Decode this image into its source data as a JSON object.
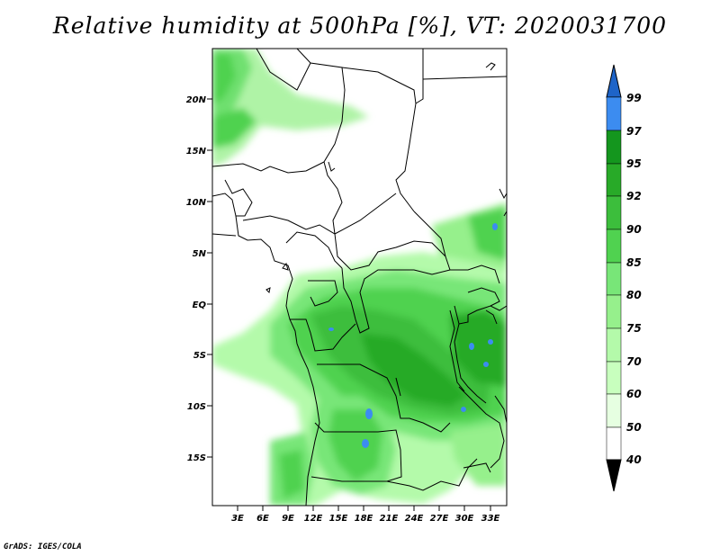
{
  "title": "Relative humidity at 500hPa [%], VT: 2020031700",
  "credit": "GrADS: IGES/COLA",
  "map": {
    "lat_labels": [
      "20N",
      "15N",
      "10N",
      "5N",
      "EQ",
      "5S",
      "10S",
      "15S"
    ],
    "lon_labels": [
      "3E",
      "6E",
      "9E",
      "12E",
      "15E",
      "18E",
      "21E",
      "24E",
      "27E",
      "30E",
      "33E"
    ]
  },
  "colorbar": {
    "levels": [
      "99",
      "97",
      "95",
      "92",
      "90",
      "85",
      "80",
      "75",
      "70",
      "60",
      "50",
      "40"
    ],
    "colors": [
      "#1e64c8",
      "#3c8cf0",
      "#14961e",
      "#28aa28",
      "#3cbe3c",
      "#50d250",
      "#78e678",
      "#96f08c",
      "#b4faaa",
      "#c8ffbe",
      "#e6ffe1",
      "#ffffff"
    ]
  }
}
